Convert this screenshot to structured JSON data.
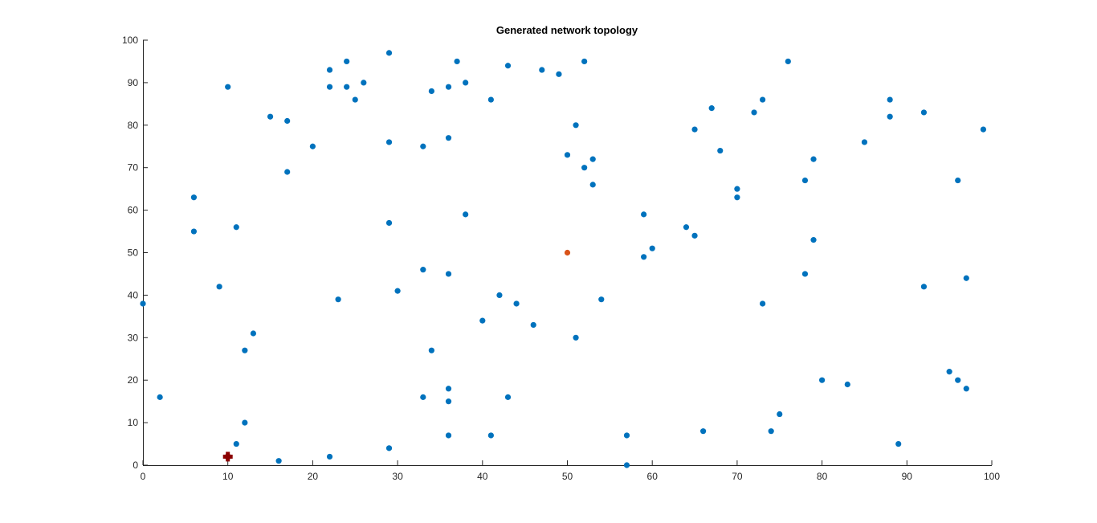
{
  "chart_data": {
    "type": "scatter",
    "title": "Generated network topology",
    "xlabel": "",
    "ylabel": "",
    "xlim": [
      0,
      100
    ],
    "ylim": [
      0,
      100
    ],
    "xticks": [
      0,
      10,
      20,
      30,
      40,
      50,
      60,
      70,
      80,
      90,
      100
    ],
    "yticks": [
      0,
      10,
      20,
      30,
      40,
      50,
      60,
      70,
      80,
      90,
      100
    ],
    "grid": false,
    "legend": "none",
    "series": [
      {
        "color": "#0072BD",
        "marker": "dot",
        "points": [
          [
            29,
            97
          ],
          [
            24,
            95
          ],
          [
            37,
            95
          ],
          [
            52,
            95
          ],
          [
            76,
            95
          ],
          [
            22,
            93
          ],
          [
            43,
            94
          ],
          [
            47,
            93
          ],
          [
            49,
            92
          ],
          [
            10,
            89
          ],
          [
            22,
            89
          ],
          [
            24,
            89
          ],
          [
            26,
            90
          ],
          [
            36,
            89
          ],
          [
            38,
            90
          ],
          [
            34,
            88
          ],
          [
            25,
            86
          ],
          [
            41,
            86
          ],
          [
            88,
            86
          ],
          [
            73,
            86
          ],
          [
            67,
            84
          ],
          [
            72,
            83
          ],
          [
            92,
            83
          ],
          [
            15,
            82
          ],
          [
            17,
            81
          ],
          [
            88,
            82
          ],
          [
            51,
            80
          ],
          [
            65,
            79
          ],
          [
            99,
            79
          ],
          [
            85,
            76
          ],
          [
            29,
            76
          ],
          [
            20,
            75
          ],
          [
            33,
            75
          ],
          [
            36,
            77
          ],
          [
            68,
            74
          ],
          [
            50,
            73
          ],
          [
            53,
            72
          ],
          [
            79,
            72
          ],
          [
            52,
            70
          ],
          [
            17,
            69
          ],
          [
            78,
            67
          ],
          [
            96,
            67
          ],
          [
            53,
            66
          ],
          [
            70,
            65
          ],
          [
            6,
            63
          ],
          [
            70,
            63
          ],
          [
            29,
            57
          ],
          [
            38,
            59
          ],
          [
            59,
            59
          ],
          [
            11,
            56
          ],
          [
            64,
            56
          ],
          [
            6,
            55
          ],
          [
            65,
            54
          ],
          [
            79,
            53
          ],
          [
            60,
            51
          ],
          [
            59,
            49
          ],
          [
            33,
            46
          ],
          [
            36,
            45
          ],
          [
            78,
            45
          ],
          [
            97,
            44
          ],
          [
            9,
            42
          ],
          [
            30,
            41
          ],
          [
            92,
            42
          ],
          [
            42,
            40
          ],
          [
            23,
            39
          ],
          [
            54,
            39
          ],
          [
            0,
            38
          ],
          [
            44,
            38
          ],
          [
            73,
            38
          ],
          [
            40,
            34
          ],
          [
            46,
            33
          ],
          [
            13,
            31
          ],
          [
            51,
            30
          ],
          [
            12,
            27
          ],
          [
            34,
            27
          ],
          [
            80,
            20
          ],
          [
            83,
            19
          ],
          [
            95,
            22
          ],
          [
            96,
            20
          ],
          [
            97,
            18
          ],
          [
            36,
            18
          ],
          [
            2,
            16
          ],
          [
            33,
            16
          ],
          [
            36,
            15
          ],
          [
            43,
            16
          ],
          [
            75,
            12
          ],
          [
            12,
            10
          ],
          [
            66,
            8
          ],
          [
            74,
            8
          ],
          [
            36,
            7
          ],
          [
            41,
            7
          ],
          [
            57,
            7
          ],
          [
            11,
            5
          ],
          [
            29,
            4
          ],
          [
            89,
            5
          ],
          [
            16,
            1
          ],
          [
            22,
            2
          ],
          [
            57,
            0
          ]
        ]
      },
      {
        "color": "#D95319",
        "marker": "dot",
        "points": [
          [
            50,
            50
          ]
        ]
      },
      {
        "color": "#8B0000",
        "marker": "cross",
        "points": [
          [
            10,
            2
          ]
        ]
      }
    ]
  }
}
